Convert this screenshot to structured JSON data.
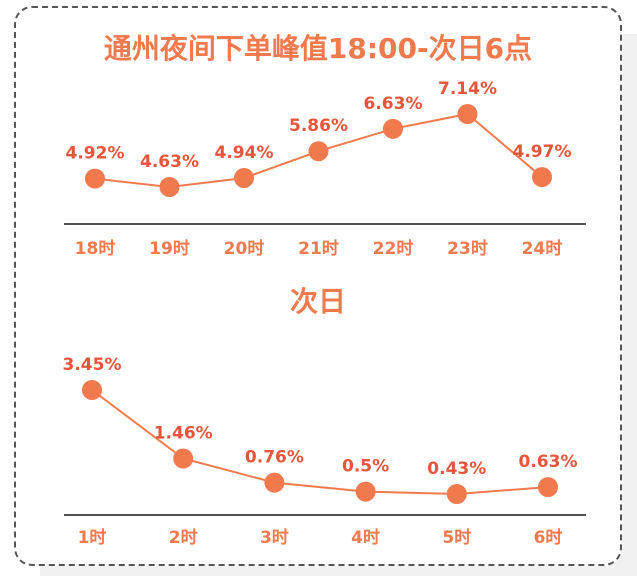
{
  "colors": {
    "accent": "#f07a4e",
    "label": "#e5553a",
    "axis": "#1a1a1a"
  },
  "chart_data": [
    {
      "type": "line",
      "title": "通州夜间下单峰值18:00-次日6点",
      "categories": [
        "18时",
        "19时",
        "20时",
        "21时",
        "22时",
        "23时",
        "24时"
      ],
      "values": [
        4.92,
        4.63,
        4.94,
        5.86,
        6.63,
        7.14,
        4.97
      ],
      "labels": [
        "4.92%",
        "4.63%",
        "4.94%",
        "5.86%",
        "6.63%",
        "7.14%",
        "4.97%"
      ],
      "unit": "%",
      "grid": false
    },
    {
      "type": "line",
      "title": "次日",
      "categories": [
        "1时",
        "2时",
        "3时",
        "4时",
        "5时",
        "6时"
      ],
      "values": [
        3.45,
        1.46,
        0.76,
        0.5,
        0.43,
        0.63
      ],
      "labels": [
        "3.45%",
        "1.46%",
        "0.76%",
        "0.5%",
        "0.43%",
        "0.63%"
      ],
      "unit": "%",
      "grid": false
    }
  ]
}
